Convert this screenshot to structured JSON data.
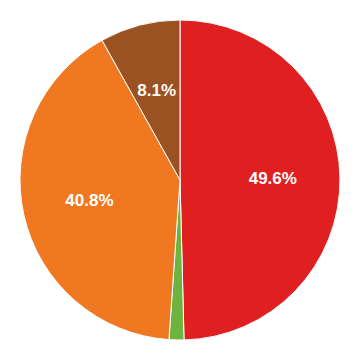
{
  "chart_data": {
    "type": "pie",
    "values": [
      49.6,
      1.5,
      40.8,
      8.1
    ],
    "value_labels": [
      "49.6%",
      null,
      "40.8%",
      "8.1%"
    ],
    "colors": [
      "#e02020",
      "#6db33f",
      "#f07820",
      "#9b5222"
    ],
    "data_labels": true
  }
}
